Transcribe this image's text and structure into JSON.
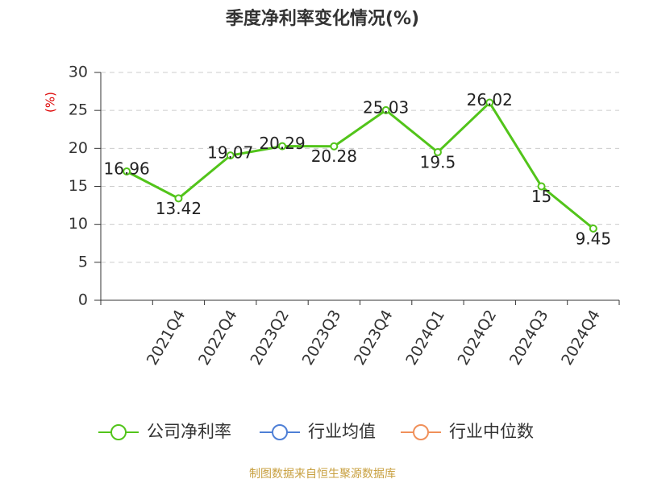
{
  "chart_data": {
    "type": "line",
    "title": "季度净利率变化情况(%)",
    "y_label": "(%)",
    "categories": [
      null,
      "2021Q4",
      "2022Q4",
      "2023Q2",
      "2023Q3",
      "2023Q4",
      "2024Q1",
      "2024Q2",
      "2024Q3",
      "2024Q4"
    ],
    "series": [
      {
        "name": "公司净利率",
        "color": "#52c41a",
        "values": [
          16.96,
          13.42,
          19.07,
          20.29,
          20.28,
          25.03,
          19.5,
          26.02,
          15,
          9.45
        ]
      },
      {
        "name": "行业均值",
        "color": "#4e7fd6",
        "values": [
          null,
          null,
          null,
          null,
          null,
          null,
          null,
          null,
          null,
          null
        ]
      },
      {
        "name": "行业中位数",
        "color": "#f0905a",
        "values": [
          null,
          null,
          null,
          null,
          null,
          null,
          null,
          null,
          null,
          null
        ]
      }
    ],
    "ylim": [
      0,
      30
    ],
    "yticks": [
      0,
      5,
      10,
      15,
      20,
      25,
      30
    ],
    "grid": true,
    "source": "制图数据来自恒生聚源数据库"
  }
}
